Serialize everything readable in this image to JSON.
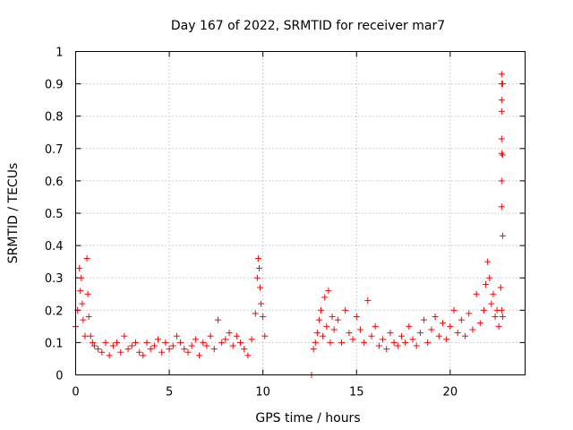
{
  "chart_data": {
    "type": "scatter",
    "title": "Day 167 of 2022, SRMTID for receiver mar7",
    "xlabel": "GPS time / hours",
    "ylabel": "SRMTID / TECUs",
    "xlim": [
      0,
      24
    ],
    "ylim": [
      0,
      1
    ],
    "grid": true,
    "xticks": [
      0,
      5,
      10,
      15,
      20
    ],
    "xtick_labels": [
      "0",
      "5",
      "10",
      "15",
      "20"
    ],
    "yticks": [
      0,
      0.1,
      0.2,
      0.3,
      0.4,
      0.5,
      0.6,
      0.7,
      0.8,
      0.9,
      1
    ],
    "ytick_labels": [
      "0",
      "0.1",
      "0.2",
      "0.3",
      "0.4",
      "0.5",
      "0.6",
      "0.7",
      "0.8",
      "0.9",
      "1"
    ],
    "marker": "+",
    "color": "#ff0000",
    "series": [
      {
        "name": "SRMTID",
        "x": [
          0.0,
          0.1,
          0.2,
          0.25,
          0.3,
          0.35,
          0.4,
          0.5,
          0.6,
          0.65,
          0.7,
          0.8,
          0.9,
          1.0,
          1.2,
          1.4,
          1.6,
          1.8,
          2.0,
          2.2,
          2.4,
          2.6,
          2.8,
          3.0,
          3.2,
          3.4,
          3.6,
          3.8,
          4.0,
          4.2,
          4.4,
          4.6,
          4.8,
          5.0,
          5.2,
          5.4,
          5.6,
          5.8,
          6.0,
          6.2,
          6.4,
          6.6,
          6.8,
          7.0,
          7.2,
          7.4,
          7.6,
          7.8,
          8.0,
          8.2,
          8.4,
          8.6,
          8.8,
          9.0,
          9.2,
          9.4,
          9.6,
          9.7,
          9.75,
          9.8,
          9.85,
          9.9,
          10.0,
          10.1,
          12.6,
          12.7,
          12.8,
          12.9,
          13.0,
          13.1,
          13.2,
          13.3,
          13.4,
          13.5,
          13.6,
          13.7,
          13.8,
          14.0,
          14.2,
          14.4,
          14.6,
          14.8,
          15.0,
          15.2,
          15.4,
          15.6,
          15.8,
          16.0,
          16.2,
          16.4,
          16.6,
          16.8,
          17.0,
          17.2,
          17.4,
          17.6,
          17.8,
          18.0,
          18.2,
          18.4,
          18.6,
          18.8,
          19.0,
          19.2,
          19.4,
          19.6,
          19.8,
          20.0,
          20.2,
          20.4,
          20.6,
          20.8,
          21.0,
          21.2,
          21.4,
          21.6,
          21.8,
          21.9,
          22.0,
          22.1,
          22.2,
          22.3,
          22.4,
          22.5,
          22.6,
          22.7,
          22.75,
          22.8
        ],
        "y": [
          0.15,
          0.2,
          0.33,
          0.26,
          0.3,
          0.22,
          0.17,
          0.12,
          0.36,
          0.25,
          0.18,
          0.12,
          0.1,
          0.09,
          0.08,
          0.07,
          0.1,
          0.06,
          0.09,
          0.1,
          0.07,
          0.12,
          0.08,
          0.09,
          0.1,
          0.07,
          0.06,
          0.1,
          0.08,
          0.09,
          0.11,
          0.07,
          0.1,
          0.08,
          0.09,
          0.12,
          0.1,
          0.08,
          0.07,
          0.09,
          0.11,
          0.06,
          0.1,
          0.09,
          0.12,
          0.08,
          0.17,
          0.1,
          0.11,
          0.13,
          0.09,
          0.12,
          0.1,
          0.08,
          0.06,
          0.11,
          0.19,
          0.3,
          0.36,
          0.33,
          0.27,
          0.22,
          0.18,
          0.12,
          0.0,
          0.08,
          0.1,
          0.13,
          0.17,
          0.2,
          0.12,
          0.24,
          0.15,
          0.26,
          0.1,
          0.18,
          0.14,
          0.17,
          0.1,
          0.2,
          0.13,
          0.11,
          0.18,
          0.14,
          0.1,
          0.23,
          0.12,
          0.15,
          0.09,
          0.11,
          0.08,
          0.13,
          0.1,
          0.09,
          0.12,
          0.1,
          0.15,
          0.11,
          0.09,
          0.13,
          0.17,
          0.1,
          0.14,
          0.18,
          0.12,
          0.16,
          0.11,
          0.15,
          0.2,
          0.13,
          0.17,
          0.12,
          0.19,
          0.14,
          0.25,
          0.16,
          0.2,
          0.28,
          0.35,
          0.3,
          0.22,
          0.25,
          0.18,
          0.2,
          0.15,
          0.27,
          0.2,
          0.18
        ],
        "x_extra": [
          22.75,
          22.75,
          22.75,
          22.75,
          22.75,
          22.75,
          22.75,
          22.75,
          22.8,
          22.8,
          22.8
        ],
        "y_extra": [
          0.93,
          0.9,
          0.85,
          0.815,
          0.73,
          0.685,
          0.6,
          0.52,
          0.43,
          0.68,
          0.9
        ]
      }
    ]
  }
}
